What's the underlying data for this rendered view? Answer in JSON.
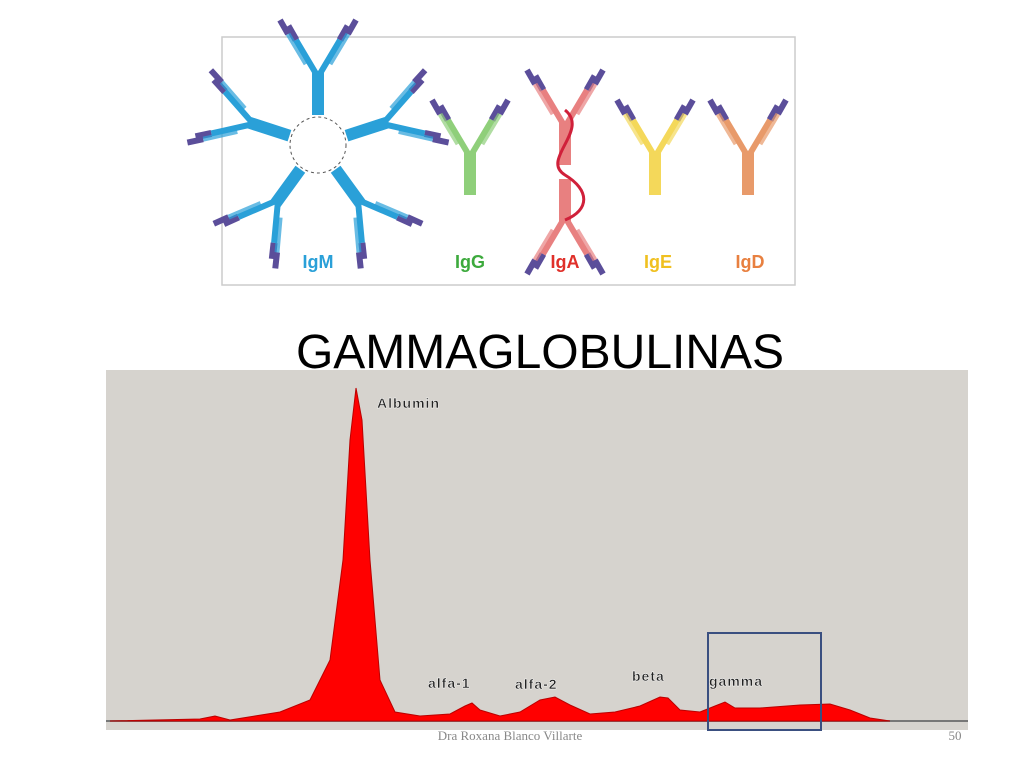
{
  "figure": {
    "antibodies": [
      "IgM",
      "IgG",
      "IgA",
      "IgE",
      "IgD"
    ]
  },
  "title": "GAMMAGLOBULINAS",
  "electrophoresis": {
    "peaks": [
      "Albumin",
      "alfa-1",
      "alfa-2",
      "beta",
      "gamma"
    ]
  },
  "footer": {
    "author": "Dra Roxana Blanco Villarte",
    "page": 50
  }
}
